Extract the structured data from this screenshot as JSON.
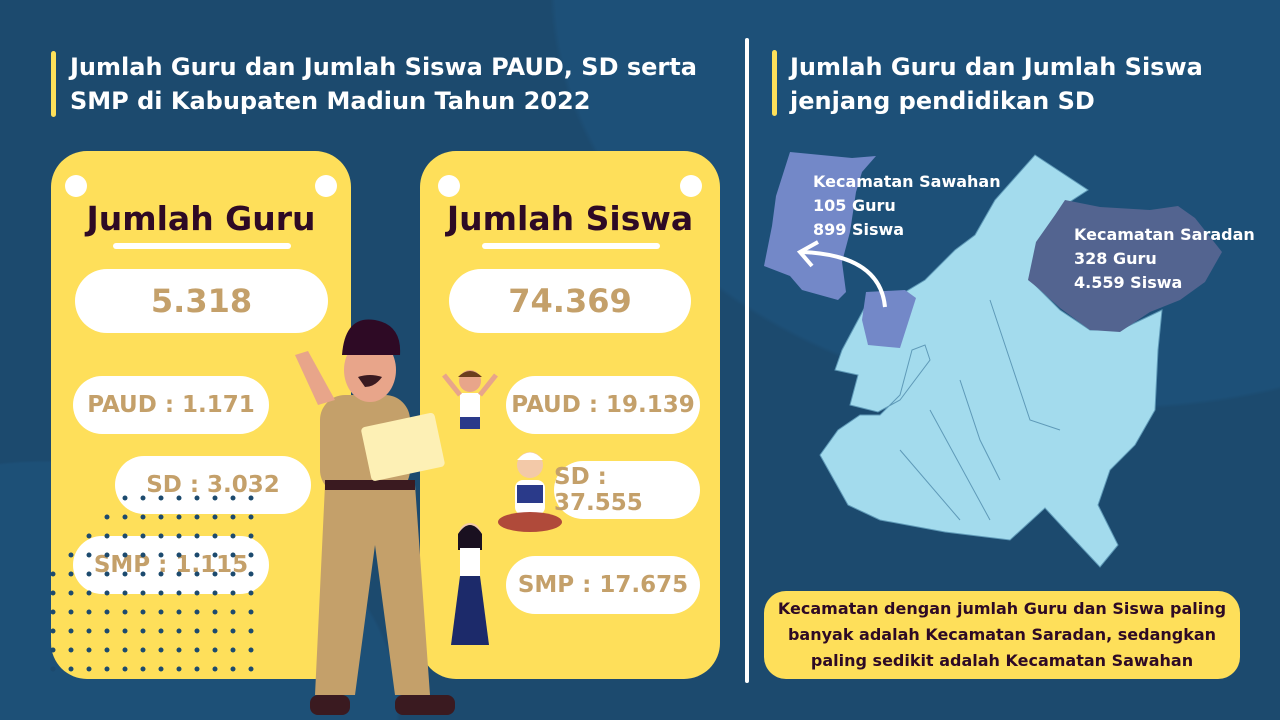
{
  "left": {
    "title": "Jumlah Guru dan Jumlah Siswa PAUD, SD serta SMP di Kabupaten Madiun Tahun 2022"
  },
  "guru": {
    "heading": "Jumlah Guru",
    "total": "5.318",
    "paud": "PAUD : 1.171",
    "sd": "SD : 3.032",
    "smp": "SMP : 1.115"
  },
  "siswa": {
    "heading": "Jumlah Siswa",
    "total": "74.369",
    "paud": "PAUD : 19.139",
    "sd": "SD : 37.555",
    "smp": "SMP : 17.675"
  },
  "right": {
    "title": "Jumlah Guru dan Jumlah Siswa jenjang pendidikan SD",
    "sawahan": {
      "name": "Kecamatan Sawahan",
      "guru": "105 Guru",
      "siswa": "899 Siswa"
    },
    "saradan": {
      "name": "Kecamatan Saradan",
      "guru": "328 Guru",
      "siswa": "4.559 Siswa"
    },
    "note": "Kecamatan dengan jumlah Guru dan Siswa paling banyak adalah Kecamatan Saradan, sedangkan paling sedikit adalah Kecamatan Sawahan"
  },
  "colors": {
    "background": "#1c4a6e",
    "card": "#fedf5a",
    "number": "#c4a06a",
    "map": "#a3dbed",
    "sawahan": "#7388c8",
    "saradan": "#536490"
  }
}
